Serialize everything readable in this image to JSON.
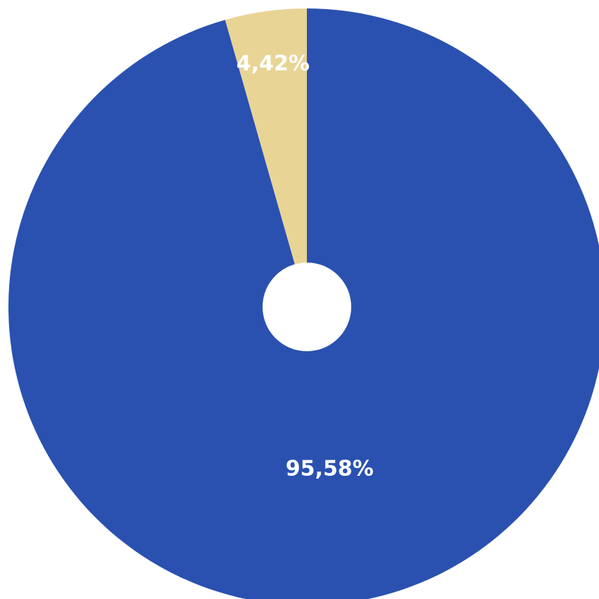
{
  "chart_data": {
    "type": "pie",
    "style": "donut",
    "slices": [
      {
        "value": 95.58,
        "label": "95,58%",
        "color": "#2a51b0"
      },
      {
        "value": 4.42,
        "label": "4,42%",
        "color": "#e8d494"
      }
    ],
    "center_hole_color": "#ffffff"
  }
}
